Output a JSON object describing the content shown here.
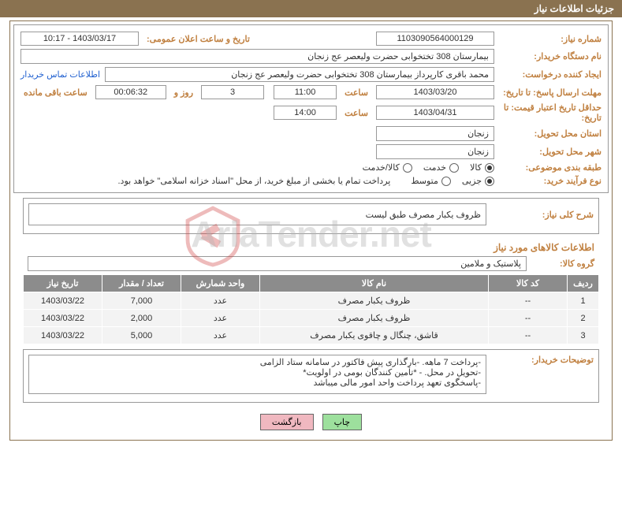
{
  "header": "جزئیات اطلاعات نیاز",
  "labels": {
    "need_no": "شماره نیاز:",
    "announce": "تاریخ و ساعت اعلان عمومی:",
    "buyer": "نام دستگاه خریدار:",
    "requester": "ایجاد کننده درخواست:",
    "contact": "اطلاعات تماس خریدار",
    "deadline": "مهلت ارسال پاسخ: تا تاریخ:",
    "hour": "ساعت",
    "days_and": "روز و",
    "remaining": "ساعت باقی مانده",
    "validity": "حداقل تاریخ اعتبار قیمت: تا تاریخ:",
    "deliver_prov": "استان محل تحویل:",
    "deliver_city": "شهر محل تحویل:",
    "classify": "طبقه بندی موضوعی:",
    "process": "نوع فرآیند خرید:",
    "payment_note": "پرداخت تمام یا بخشی از مبلغ خرید، از محل \"اسناد خزانه اسلامی\" خواهد بود.",
    "summary": "شرح کلی نیاز:",
    "items_title": "اطلاعات کالاهای مورد نیاز",
    "group": "گروه کالا:",
    "buyer_notes": "توضیحات خریدار:"
  },
  "values": {
    "need_no": "1103090564000129",
    "announce_dt": "1403/03/17 - 10:17",
    "buyer": "بیمارستان 308 تختخوابی حضرت ولیعصر عج  زنجان",
    "requester": "محمد باقری کارپرداز بیمارستان 308 تختخوابی حضرت ولیعصر عج  زنجان",
    "deadline_date": "1403/03/20",
    "deadline_time": "11:00",
    "days_left": "3",
    "time_left": "00:06:32",
    "validity_date": "1403/04/31",
    "validity_time": "14:00",
    "province": "زنجان",
    "city": "زنجان",
    "summary": "ظروف یکبار مصرف طبق لیست",
    "group": "پلاستیک و ملامین",
    "notes": "-پرداخت 7 ماهه. -بارگذاری پیش فاکتور در سامانه ستاد الزامی\n-تحویل در محل. - *تأمین کنندگان بومی در اولویت*\n-پاسخگوی تعهد پرداخت واحد امور مالی میباشد"
  },
  "radios1": {
    "options": [
      "کالا",
      "خدمت",
      "کالا/خدمت"
    ],
    "selected": 0
  },
  "radios2": {
    "options": [
      "جزیی",
      "متوسط"
    ],
    "selected": 0
  },
  "table": {
    "headers": [
      "ردیف",
      "کد کالا",
      "نام کالا",
      "واحد شمارش",
      "تعداد / مقدار",
      "تاریخ نیاز"
    ],
    "rows": [
      [
        "1",
        "--",
        "ظروف یکبار مصرف",
        "عدد",
        "7,000",
        "1403/03/22"
      ],
      [
        "2",
        "--",
        "ظروف یکبار مصرف",
        "عدد",
        "2,000",
        "1403/03/22"
      ],
      [
        "3",
        "--",
        "قاشق، چنگال و چاقوی یکبار مصرف",
        "عدد",
        "5,000",
        "1403/03/22"
      ]
    ]
  },
  "buttons": {
    "print": "چاپ",
    "back": "بازگشت"
  },
  "watermark": "AriaTender.net",
  "colors": {
    "header_bg": "#8a7250",
    "label_color": "#c08040",
    "th_bg": "#8c8c8c",
    "td_bg": "#f3f3f3",
    "btn_green": "#9de09d",
    "btn_pink": "#f0b8c0",
    "link": "#2060d0"
  }
}
